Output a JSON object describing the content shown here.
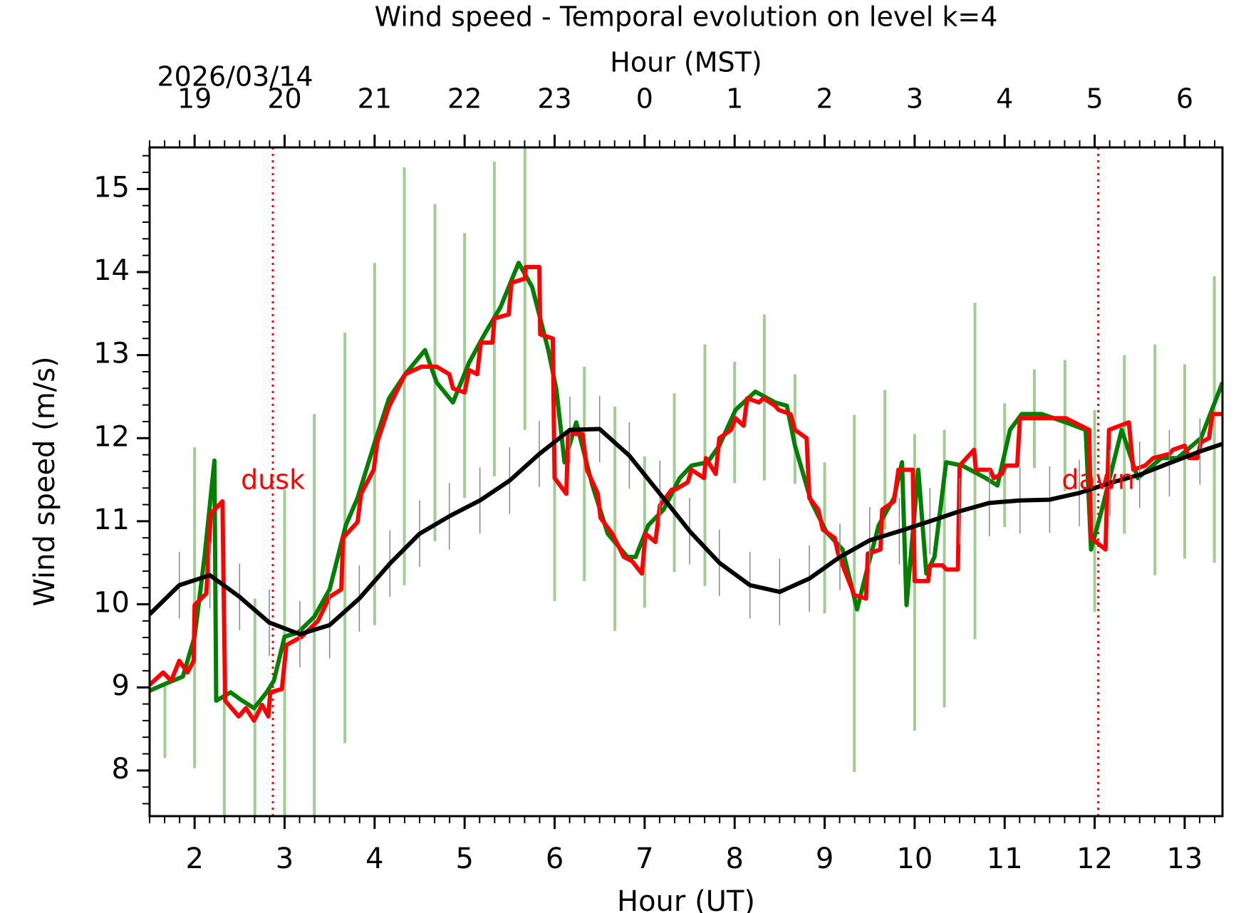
{
  "chart_data": {
    "type": "line",
    "title": "Wind speed - Temporal evolution on level k=4",
    "xlabel": "Hour (UT)",
    "x2label": "Hour (MST)",
    "ylabel": "Wind speed (m/s)",
    "date_label": "2026/03/14",
    "xlim": [
      1.5,
      13.42
    ],
    "ylim": [
      7.45,
      15.5
    ],
    "xticks": [
      2,
      3,
      4,
      5,
      6,
      7,
      8,
      9,
      10,
      11,
      12,
      13
    ],
    "x2ticks": [
      {
        "value": 2,
        "label": "19"
      },
      {
        "value": 3,
        "label": "20"
      },
      {
        "value": 4,
        "label": "21"
      },
      {
        "value": 5,
        "label": "22"
      },
      {
        "value": 6,
        "label": "23"
      },
      {
        "value": 7,
        "label": "0"
      },
      {
        "value": 8,
        "label": "1"
      },
      {
        "value": 9,
        "label": "2"
      },
      {
        "value": 10,
        "label": "3"
      },
      {
        "value": 11,
        "label": "4"
      },
      {
        "value": 12,
        "label": "5"
      },
      {
        "value": 13,
        "label": "6"
      }
    ],
    "yticks": [
      8,
      9,
      10,
      11,
      12,
      13,
      14,
      15
    ],
    "annotations": [
      {
        "text": "dusk",
        "x": 2.87,
        "color": "#ff0000"
      },
      {
        "text": "dawn",
        "x": 12.04,
        "color": "#ff0000"
      }
    ],
    "ranges": {
      "color": "#a3cc94",
      "x": [
        1.67,
        2.0,
        2.33,
        2.67,
        3.0,
        3.33,
        3.67,
        4.0,
        4.33,
        4.67,
        5.0,
        5.33,
        5.67,
        6.0,
        6.33,
        6.67,
        7.0,
        7.33,
        7.67,
        8.0,
        8.33,
        8.67,
        9.0,
        9.33,
        9.67,
        10.0,
        10.33,
        10.67,
        11.0,
        11.33,
        11.67,
        12.0,
        12.33,
        12.67,
        13.0,
        13.33
      ],
      "high": [
        9.05,
        11.89,
        8.98,
        10.07,
        11.38,
        12.29,
        13.27,
        14.11,
        15.26,
        14.82,
        14.47,
        15.33,
        15.6,
        12.34,
        12.86,
        12.38,
        11.78,
        12.54,
        13.13,
        12.92,
        13.49,
        12.77,
        11.71,
        12.28,
        12.58,
        12.05,
        12.1,
        13.63,
        12.42,
        12.83,
        12.94,
        12.34,
        13.0,
        13.13,
        12.89,
        13.95
      ],
      "low": [
        8.15,
        8.03,
        7.3,
        7.3,
        7.3,
        7.3,
        8.33,
        9.75,
        10.23,
        10.76,
        11.28,
        11.54,
        12.1,
        10.04,
        10.28,
        9.68,
        9.96,
        10.39,
        10.22,
        11.46,
        11.49,
        11.45,
        9.89,
        7.98,
        10.9,
        8.48,
        8.76,
        9.58,
        10.93,
        11.64,
        11.36,
        9.91,
        10.85,
        10.35,
        10.55,
        10.5
      ]
    },
    "series": [
      {
        "color": "#007f00",
        "x": [
          1.5,
          1.69,
          1.87,
          2.0,
          2.11,
          2.22,
          2.24,
          2.4,
          2.53,
          2.66,
          2.8,
          2.88,
          3.0,
          3.15,
          3.33,
          3.5,
          3.68,
          3.81,
          3.99,
          4.16,
          4.34,
          4.56,
          4.69,
          4.87,
          5.05,
          5.22,
          5.4,
          5.6,
          5.75,
          5.93,
          6.02,
          6.11,
          6.24,
          6.42,
          6.59,
          6.81,
          6.9,
          7.04,
          7.21,
          7.39,
          7.52,
          7.7,
          7.83,
          8.01,
          8.23,
          8.45,
          8.58,
          8.67,
          8.85,
          9.02,
          9.2,
          9.36,
          9.46,
          9.6,
          9.77,
          9.86,
          9.91,
          10.04,
          10.13,
          10.22,
          10.35,
          10.53,
          10.79,
          10.92,
          11.06,
          11.19,
          11.41,
          11.68,
          11.9,
          11.96,
          12.08,
          12.3,
          12.48,
          12.74,
          12.92,
          13.18,
          13.42
        ],
        "values": [
          8.96,
          9.05,
          9.13,
          9.61,
          10.57,
          11.73,
          8.84,
          8.94,
          8.84,
          8.75,
          8.94,
          9.08,
          9.61,
          9.66,
          9.85,
          10.18,
          10.95,
          11.28,
          11.91,
          12.48,
          12.77,
          13.06,
          12.67,
          12.43,
          12.91,
          13.25,
          13.58,
          14.11,
          13.82,
          13.06,
          12.58,
          11.71,
          12.19,
          11.43,
          10.85,
          10.57,
          10.57,
          10.95,
          11.14,
          11.52,
          11.67,
          11.71,
          11.91,
          12.34,
          12.56,
          12.43,
          12.39,
          11.91,
          11.24,
          10.87,
          10.66,
          9.94,
          10.37,
          10.95,
          11.28,
          11.71,
          9.99,
          11.62,
          10.37,
          10.57,
          11.71,
          11.67,
          11.52,
          11.43,
          12.1,
          12.29,
          12.29,
          12.19,
          12.1,
          10.66,
          11.14,
          12.1,
          11.52,
          11.76,
          11.76,
          12.0,
          12.67
        ]
      },
      {
        "color": "#ff0000",
        "x": [
          1.5,
          1.65,
          1.74,
          1.83,
          1.92,
          1.99,
          2.0,
          2.13,
          2.18,
          2.31,
          2.34,
          2.49,
          2.57,
          2.66,
          2.75,
          2.82,
          2.84,
          2.97,
          3.02,
          3.19,
          3.37,
          3.5,
          3.63,
          3.65,
          3.81,
          3.85,
          3.99,
          4.03,
          4.16,
          4.34,
          4.52,
          4.69,
          4.83,
          4.87,
          5.0,
          5.05,
          5.14,
          5.18,
          5.31,
          5.33,
          5.49,
          5.52,
          5.67,
          5.68,
          5.83,
          5.84,
          5.98,
          6.0,
          6.13,
          6.15,
          6.31,
          6.36,
          6.48,
          6.51,
          6.64,
          6.77,
          6.86,
          6.97,
          7.01,
          7.12,
          7.17,
          7.3,
          7.34,
          7.48,
          7.52,
          7.66,
          7.68,
          7.79,
          7.83,
          7.96,
          8.01,
          8.1,
          8.14,
          8.27,
          8.32,
          8.45,
          8.49,
          8.62,
          8.67,
          8.8,
          8.83,
          8.93,
          8.98,
          9.11,
          9.15,
          9.33,
          9.46,
          9.48,
          9.62,
          9.64,
          9.77,
          9.82,
          9.98,
          10.0,
          10.15,
          10.17,
          10.31,
          10.35,
          10.48,
          10.5,
          10.66,
          10.68,
          10.84,
          10.88,
          10.97,
          11.01,
          11.14,
          11.17,
          11.32,
          11.68,
          11.94,
          11.96,
          12.12,
          12.16,
          12.38,
          12.43,
          12.56,
          12.65,
          12.83,
          12.87,
          13.0,
          13.05,
          13.14,
          13.18,
          13.27,
          13.31,
          13.42
        ],
        "values": [
          9.03,
          9.18,
          9.08,
          9.32,
          9.18,
          9.32,
          9.99,
          10.13,
          11.09,
          11.24,
          8.84,
          8.65,
          8.75,
          8.6,
          8.79,
          8.65,
          8.94,
          8.98,
          9.51,
          9.61,
          9.8,
          10.09,
          10.18,
          10.8,
          10.99,
          11.33,
          11.62,
          11.95,
          12.38,
          12.77,
          12.86,
          12.86,
          12.77,
          12.6,
          12.55,
          12.82,
          12.77,
          13.15,
          13.15,
          13.44,
          13.49,
          13.87,
          13.92,
          14.06,
          14.06,
          13.25,
          13.2,
          11.52,
          11.33,
          12.05,
          12.05,
          11.62,
          11.33,
          11.04,
          10.85,
          10.57,
          10.52,
          10.37,
          10.85,
          10.75,
          11.19,
          11.38,
          11.38,
          11.47,
          11.62,
          11.52,
          11.76,
          11.57,
          12.0,
          12.1,
          12.24,
          12.15,
          12.48,
          12.43,
          12.48,
          12.39,
          12.34,
          12.29,
          12.1,
          12.0,
          11.28,
          11.14,
          10.9,
          10.8,
          10.61,
          10.11,
          10.07,
          10.61,
          10.66,
          11.14,
          11.24,
          11.62,
          11.62,
          10.28,
          10.28,
          10.47,
          10.47,
          10.42,
          10.42,
          11.67,
          11.86,
          11.62,
          11.62,
          11.52,
          11.57,
          11.67,
          11.67,
          12.24,
          12.24,
          12.24,
          12.1,
          10.8,
          10.66,
          12.1,
          12.19,
          11.62,
          11.67,
          11.76,
          11.81,
          11.86,
          11.91,
          11.76,
          11.76,
          11.95,
          12.0,
          12.29,
          12.29
        ]
      },
      {
        "color": "#000000",
        "x": [
          1.5,
          1.83,
          2.17,
          2.5,
          2.83,
          3.17,
          3.5,
          3.83,
          4.17,
          4.5,
          4.83,
          5.17,
          5.5,
          5.83,
          6.17,
          6.5,
          6.83,
          7.17,
          7.5,
          7.83,
          8.17,
          8.5,
          8.83,
          9.17,
          9.5,
          9.83,
          10.17,
          10.5,
          10.83,
          11.17,
          11.5,
          11.83,
          12.17,
          12.5,
          12.83,
          13.17,
          13.42
        ],
        "values": [
          9.88,
          10.23,
          10.35,
          10.09,
          9.78,
          9.64,
          9.75,
          10.07,
          10.49,
          10.85,
          11.06,
          11.25,
          11.49,
          11.81,
          12.1,
          12.11,
          11.79,
          11.33,
          10.88,
          10.5,
          10.23,
          10.15,
          10.31,
          10.57,
          10.77,
          10.88,
          11.0,
          11.12,
          11.22,
          11.25,
          11.26,
          11.34,
          11.46,
          11.56,
          11.7,
          11.84,
          11.93
        ],
        "errors": [
          0.4,
          0.4,
          0.4,
          0.4,
          0.4,
          0.4,
          0.4,
          0.4,
          0.4,
          0.4,
          0.4,
          0.4,
          0.4,
          0.4,
          0.4,
          0.4,
          0.4,
          0.4,
          0.4,
          0.4,
          0.4,
          0.4,
          0.4,
          0.4,
          0.4,
          0.4,
          0.4,
          0.4,
          0.4,
          0.4,
          0.4,
          0.4,
          0.4,
          0.4,
          0.4,
          0.4,
          0.4
        ]
      }
    ]
  }
}
